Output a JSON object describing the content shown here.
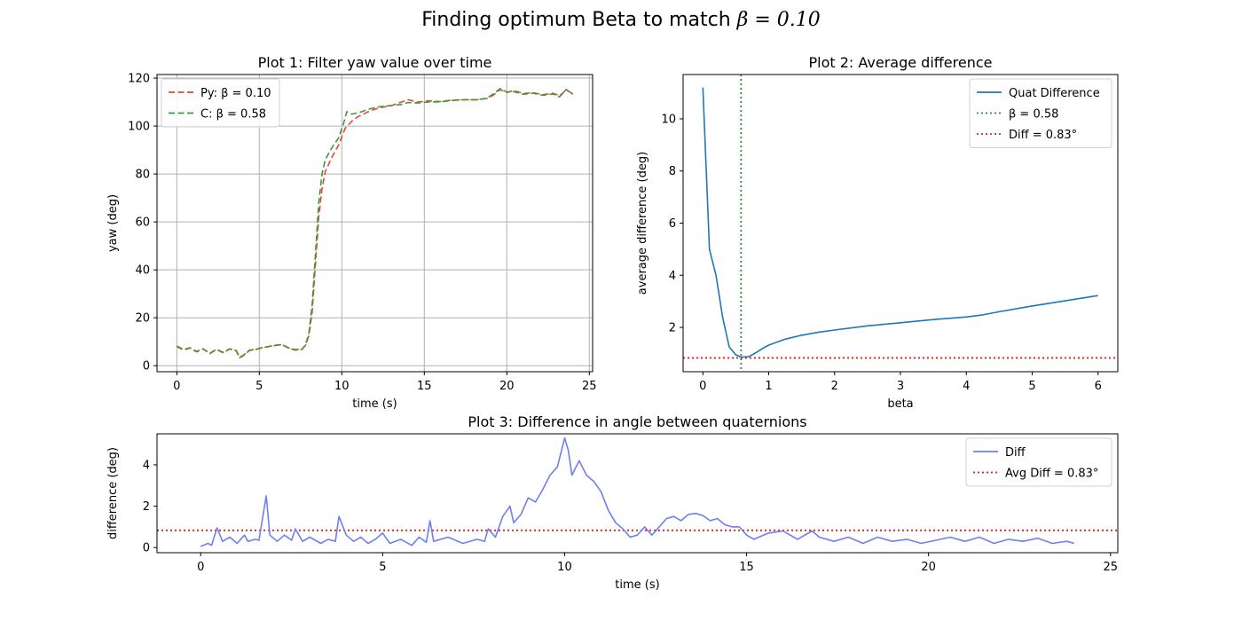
{
  "figure": {
    "suptitle_prefix": "Finding optimum Beta to match ",
    "suptitle_math": "β = 0.10"
  },
  "chart_data": [
    {
      "type": "line",
      "title": "Plot 1: Filter yaw value over time",
      "xlabel": "time (s)",
      "ylabel": "yaw (deg)",
      "xlim": [
        -1.2,
        25.2
      ],
      "ylim": [
        -2.5,
        121.5
      ],
      "xticks": [
        0,
        5,
        10,
        15,
        20,
        25
      ],
      "yticks": [
        0,
        20,
        40,
        60,
        80,
        100,
        120
      ],
      "grid": true,
      "legend_position": "top-left",
      "series": [
        {
          "name": "Py: β = 0.10",
          "color": "#e8463a",
          "style": "dashed",
          "points": [
            [
              0,
              8.2
            ],
            [
              0.4,
              6.8
            ],
            [
              0.8,
              7.5
            ],
            [
              1.2,
              6.0
            ],
            [
              1.6,
              7.1
            ],
            [
              2.0,
              5.2
            ],
            [
              2.4,
              6.9
            ],
            [
              2.8,
              5.6
            ],
            [
              3.2,
              7.0
            ],
            [
              3.6,
              6.4
            ],
            [
              3.8,
              3.6
            ],
            [
              4.0,
              4.2
            ],
            [
              4.4,
              6.5
            ],
            [
              4.8,
              6.9
            ],
            [
              5.2,
              7.6
            ],
            [
              5.6,
              8.1
            ],
            [
              6.0,
              8.6
            ],
            [
              6.4,
              8.8
            ],
            [
              6.8,
              7.4
            ],
            [
              7.2,
              6.7
            ],
            [
              7.6,
              7.0
            ],
            [
              7.8,
              8.5
            ],
            [
              8.0,
              12.5
            ],
            [
              8.2,
              22
            ],
            [
              8.4,
              42
            ],
            [
              8.6,
              62
            ],
            [
              8.8,
              74
            ],
            [
              9.0,
              81
            ],
            [
              9.4,
              87
            ],
            [
              9.8,
              92
            ],
            [
              10.2,
              99
            ],
            [
              10.6,
              102
            ],
            [
              11.0,
              104
            ],
            [
              11.6,
              106
            ],
            [
              12.2,
              107.5
            ],
            [
              13.0,
              108.5
            ],
            [
              13.6,
              110
            ],
            [
              14.0,
              111
            ],
            [
              14.6,
              110
            ],
            [
              15.2,
              110.5
            ],
            [
              16.0,
              110.2
            ],
            [
              16.6,
              110.8
            ],
            [
              17.4,
              111
            ],
            [
              18.2,
              111
            ],
            [
              18.8,
              111.5
            ],
            [
              19.2,
              113
            ],
            [
              19.6,
              115.2
            ],
            [
              20.0,
              114
            ],
            [
              20.4,
              114.8
            ],
            [
              21.0,
              113.6
            ],
            [
              21.6,
              113.9
            ],
            [
              22.2,
              113.1
            ],
            [
              22.8,
              113.7
            ],
            [
              23.2,
              112.6
            ],
            [
              23.6,
              115.1
            ],
            [
              24.0,
              113.4
            ]
          ]
        },
        {
          "name": "C: β = 0.58",
          "color": "#3b9a3b",
          "style": "dashed",
          "points": [
            [
              0,
              8.0
            ],
            [
              0.4,
              6.5
            ],
            [
              0.8,
              7.4
            ],
            [
              1.2,
              5.8
            ],
            [
              1.6,
              7.0
            ],
            [
              2.0,
              5.0
            ],
            [
              2.4,
              6.8
            ],
            [
              2.8,
              5.4
            ],
            [
              3.2,
              6.9
            ],
            [
              3.6,
              6.2
            ],
            [
              3.8,
              3.3
            ],
            [
              4.0,
              4.0
            ],
            [
              4.4,
              6.4
            ],
            [
              4.8,
              6.8
            ],
            [
              5.2,
              7.5
            ],
            [
              5.6,
              8.0
            ],
            [
              6.0,
              8.5
            ],
            [
              6.4,
              8.7
            ],
            [
              6.8,
              7.2
            ],
            [
              7.2,
              6.5
            ],
            [
              7.6,
              6.9
            ],
            [
              7.8,
              8.8
            ],
            [
              8.0,
              13.5
            ],
            [
              8.2,
              25
            ],
            [
              8.4,
              46
            ],
            [
              8.6,
              68
            ],
            [
              8.8,
              80
            ],
            [
              9.0,
              86
            ],
            [
              9.4,
              91
            ],
            [
              9.8,
              95
            ],
            [
              10.1,
              101
            ],
            [
              10.3,
              106
            ],
            [
              10.6,
              105
            ],
            [
              11.0,
              105.5
            ],
            [
              11.6,
              107
            ],
            [
              12.2,
              108
            ],
            [
              13.0,
              108.6
            ],
            [
              13.6,
              109
            ],
            [
              14.0,
              109.8
            ],
            [
              14.6,
              109.6
            ],
            [
              15.2,
              110
            ],
            [
              16.0,
              110.1
            ],
            [
              16.6,
              110.6
            ],
            [
              17.4,
              111
            ],
            [
              18.2,
              111
            ],
            [
              18.8,
              111.6
            ],
            [
              19.2,
              113.5
            ],
            [
              19.6,
              115.6
            ],
            [
              20.0,
              114.2
            ],
            [
              20.4,
              114.4
            ],
            [
              21.0,
              113.3
            ],
            [
              21.6,
              113.7
            ],
            [
              22.2,
              112.8
            ],
            [
              22.8,
              113.4
            ],
            [
              23.2,
              112.2
            ],
            [
              23.6,
              115.3
            ],
            [
              24.0,
              113.2
            ]
          ]
        }
      ]
    },
    {
      "type": "line",
      "title": "Plot 2: Average difference",
      "xlabel": "beta",
      "ylabel": "average difference (deg)",
      "xlim": [
        -0.3,
        6.3
      ],
      "ylim": [
        0.3,
        11.7
      ],
      "xticks": [
        0,
        1,
        2,
        3,
        4,
        5,
        6
      ],
      "yticks": [
        2,
        4,
        6,
        8,
        10
      ],
      "grid": false,
      "legend_position": "top-right",
      "series": [
        {
          "name": "Quat Difference",
          "color": "#1f77b4",
          "style": "solid",
          "points": [
            [
              0,
              11.2
            ],
            [
              0.1,
              5.0
            ],
            [
              0.2,
              4.0
            ],
            [
              0.3,
              2.4
            ],
            [
              0.4,
              1.25
            ],
            [
              0.5,
              0.95
            ],
            [
              0.58,
              0.86
            ],
            [
              0.7,
              0.88
            ],
            [
              0.8,
              1.02
            ],
            [
              0.9,
              1.18
            ],
            [
              1.0,
              1.32
            ],
            [
              1.25,
              1.55
            ],
            [
              1.5,
              1.7
            ],
            [
              1.75,
              1.81
            ],
            [
              2.0,
              1.9
            ],
            [
              2.5,
              2.06
            ],
            [
              3.0,
              2.18
            ],
            [
              3.5,
              2.3
            ],
            [
              4.0,
              2.4
            ],
            [
              4.25,
              2.48
            ],
            [
              4.5,
              2.6
            ],
            [
              5.0,
              2.82
            ],
            [
              5.5,
              3.02
            ],
            [
              6.0,
              3.22
            ]
          ]
        }
      ],
      "reference_lines": [
        {
          "name": "β = 0.58",
          "orientation": "vertical",
          "value": 0.58,
          "color": "#2e8b2e",
          "style": "dotted"
        },
        {
          "name": "Diff = 0.83°",
          "orientation": "horizontal",
          "value": 0.83,
          "color": "#e0201a",
          "style": "dotted"
        }
      ]
    },
    {
      "type": "line",
      "title": "Plot 3: Difference in angle between quaternions",
      "xlabel": "time (s)",
      "ylabel": "difference (deg)",
      "xlim": [
        -1.2,
        25.2
      ],
      "ylim": [
        -0.25,
        5.5
      ],
      "xticks": [
        0,
        5,
        10,
        15,
        20,
        25
      ],
      "yticks": [
        0,
        2,
        4
      ],
      "grid": false,
      "legend_position": "top-right",
      "series": [
        {
          "name": "Diff",
          "color": "#6f7ff0",
          "style": "solid",
          "points": [
            [
              0,
              0.05
            ],
            [
              0.2,
              0.2
            ],
            [
              0.3,
              0.1
            ],
            [
              0.45,
              0.95
            ],
            [
              0.6,
              0.3
            ],
            [
              0.8,
              0.5
            ],
            [
              1.0,
              0.2
            ],
            [
              1.2,
              0.6
            ],
            [
              1.3,
              0.3
            ],
            [
              1.5,
              0.4
            ],
            [
              1.6,
              0.35
            ],
            [
              1.8,
              2.5
            ],
            [
              1.9,
              0.6
            ],
            [
              2.1,
              0.3
            ],
            [
              2.3,
              0.6
            ],
            [
              2.5,
              0.35
            ],
            [
              2.6,
              0.9
            ],
            [
              2.8,
              0.3
            ],
            [
              3.0,
              0.5
            ],
            [
              3.3,
              0.2
            ],
            [
              3.5,
              0.4
            ],
            [
              3.7,
              0.3
            ],
            [
              3.8,
              1.5
            ],
            [
              4.0,
              0.6
            ],
            [
              4.2,
              0.3
            ],
            [
              4.4,
              0.5
            ],
            [
              4.6,
              0.2
            ],
            [
              4.8,
              0.4
            ],
            [
              5.0,
              0.7
            ],
            [
              5.2,
              0.2
            ],
            [
              5.5,
              0.4
            ],
            [
              5.8,
              0.1
            ],
            [
              6.0,
              0.5
            ],
            [
              6.2,
              0.25
            ],
            [
              6.3,
              1.3
            ],
            [
              6.4,
              0.3
            ],
            [
              6.8,
              0.5
            ],
            [
              7.2,
              0.2
            ],
            [
              7.6,
              0.4
            ],
            [
              7.8,
              0.3
            ],
            [
              7.9,
              0.9
            ],
            [
              8.1,
              0.5
            ],
            [
              8.3,
              1.5
            ],
            [
              8.5,
              2.0
            ],
            [
              8.6,
              1.2
            ],
            [
              8.8,
              1.6
            ],
            [
              9.0,
              2.4
            ],
            [
              9.2,
              2.2
            ],
            [
              9.4,
              2.8
            ],
            [
              9.6,
              3.5
            ],
            [
              9.8,
              3.9
            ],
            [
              10.0,
              5.3
            ],
            [
              10.1,
              4.7
            ],
            [
              10.2,
              3.5
            ],
            [
              10.4,
              4.2
            ],
            [
              10.6,
              3.5
            ],
            [
              10.8,
              3.2
            ],
            [
              11.0,
              2.7
            ],
            [
              11.2,
              1.8
            ],
            [
              11.4,
              1.2
            ],
            [
              11.6,
              0.9
            ],
            [
              11.8,
              0.5
            ],
            [
              12.0,
              0.6
            ],
            [
              12.2,
              1.0
            ],
            [
              12.4,
              0.6
            ],
            [
              12.6,
              1.0
            ],
            [
              12.8,
              1.4
            ],
            [
              13.0,
              1.5
            ],
            [
              13.2,
              1.3
            ],
            [
              13.4,
              1.6
            ],
            [
              13.6,
              1.65
            ],
            [
              13.8,
              1.55
            ],
            [
              14.0,
              1.3
            ],
            [
              14.2,
              1.4
            ],
            [
              14.4,
              1.1
            ],
            [
              14.6,
              1.0
            ],
            [
              14.8,
              1.0
            ],
            [
              15.0,
              0.6
            ],
            [
              15.2,
              0.4
            ],
            [
              15.6,
              0.7
            ],
            [
              16.0,
              0.8
            ],
            [
              16.4,
              0.4
            ],
            [
              16.8,
              0.8
            ],
            [
              17.0,
              0.5
            ],
            [
              17.4,
              0.3
            ],
            [
              17.8,
              0.5
            ],
            [
              18.2,
              0.2
            ],
            [
              18.6,
              0.5
            ],
            [
              19.0,
              0.3
            ],
            [
              19.4,
              0.4
            ],
            [
              19.8,
              0.2
            ],
            [
              20.2,
              0.35
            ],
            [
              20.6,
              0.5
            ],
            [
              21.0,
              0.3
            ],
            [
              21.4,
              0.5
            ],
            [
              21.8,
              0.2
            ],
            [
              22.2,
              0.4
            ],
            [
              22.6,
              0.3
            ],
            [
              23.0,
              0.45
            ],
            [
              23.4,
              0.2
            ],
            [
              23.8,
              0.3
            ],
            [
              24.0,
              0.2
            ]
          ]
        }
      ],
      "reference_lines": [
        {
          "name": "Avg Diff = 0.83°",
          "orientation": "horizontal",
          "value": 0.83,
          "color": "#e0201a",
          "style": "dotted"
        }
      ]
    }
  ]
}
